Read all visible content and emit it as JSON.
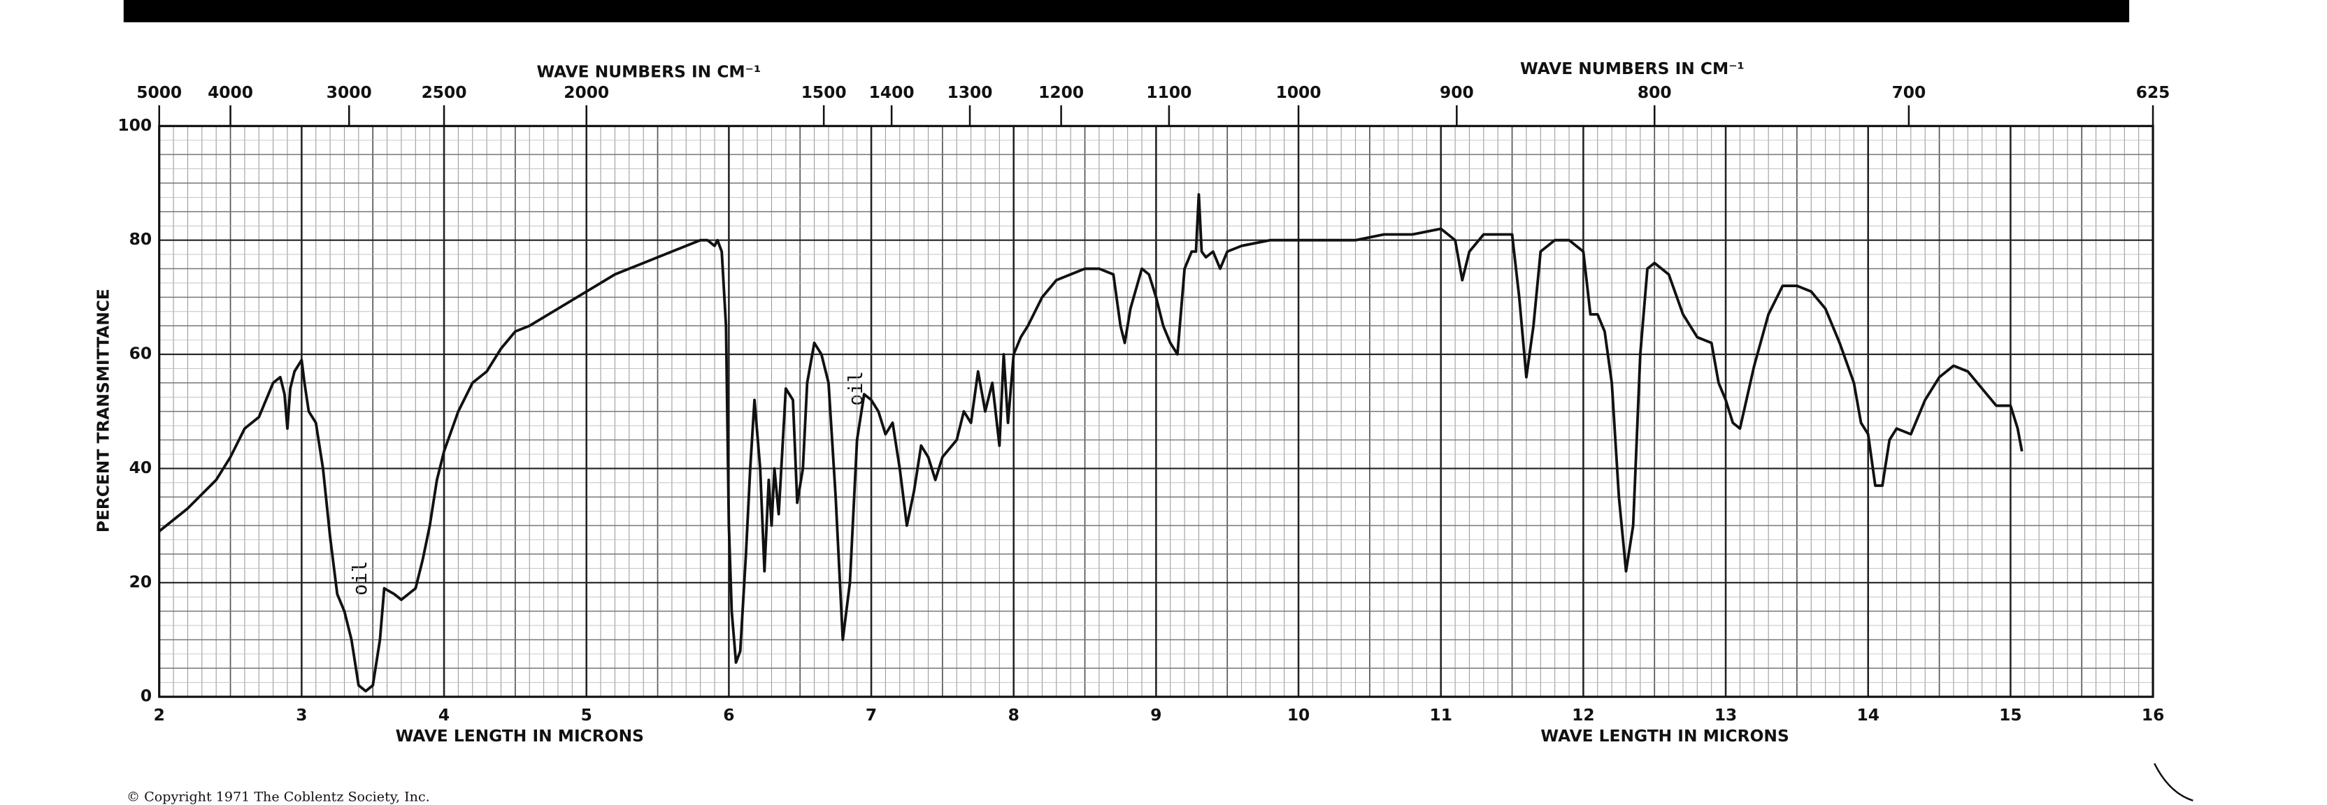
{
  "chart_data": {
    "type": "line",
    "top_title_left": "WAVE NUMBERS IN CM⁻¹",
    "top_title_right": "WAVE NUMBERS IN CM⁻¹",
    "xlabel_left": "WAVE LENGTH IN MICRONS",
    "xlabel_right": "WAVE LENGTH IN MICRONS",
    "ylabel": "PERCENT TRANSMITTANCE",
    "annotations": [
      "oil",
      "oil"
    ],
    "copyright": "© Copyright 1971  The Coblentz Society, Inc.",
    "color": "#111111",
    "grid": true,
    "x2_scale": "reciprocal",
    "xlim": [
      2,
      16
    ],
    "xticks": [
      2,
      3,
      4,
      5,
      6,
      7,
      8,
      9,
      10,
      11,
      12,
      13,
      14,
      15,
      16
    ],
    "x2ticks": [
      5000,
      4000,
      3000,
      2500,
      2000,
      1500,
      1400,
      1300,
      1200,
      1100,
      1000,
      900,
      800,
      700,
      625
    ],
    "ylim": [
      0,
      100
    ],
    "yticks": [
      0,
      20,
      40,
      60,
      80,
      100
    ],
    "x": [
      2.0,
      2.2,
      2.4,
      2.5,
      2.6,
      2.7,
      2.75,
      2.8,
      2.85,
      2.88,
      2.9,
      2.92,
      2.95,
      3.0,
      3.02,
      3.05,
      3.1,
      3.15,
      3.2,
      3.25,
      3.3,
      3.35,
      3.4,
      3.45,
      3.5,
      3.55,
      3.58,
      3.65,
      3.7,
      3.8,
      3.85,
      3.9,
      3.95,
      4.0,
      4.1,
      4.2,
      4.3,
      4.4,
      4.5,
      4.6,
      4.8,
      5.0,
      5.2,
      5.4,
      5.6,
      5.8,
      5.85,
      5.9,
      5.92,
      5.95,
      5.98,
      6.0,
      6.02,
      6.05,
      6.08,
      6.12,
      6.15,
      6.18,
      6.22,
      6.25,
      6.28,
      6.3,
      6.32,
      6.35,
      6.4,
      6.45,
      6.48,
      6.52,
      6.55,
      6.6,
      6.65,
      6.7,
      6.75,
      6.8,
      6.85,
      6.9,
      6.95,
      7.0,
      7.05,
      7.1,
      7.15,
      7.2,
      7.25,
      7.3,
      7.35,
      7.4,
      7.45,
      7.5,
      7.6,
      7.65,
      7.7,
      7.75,
      7.8,
      7.85,
      7.9,
      7.93,
      7.96,
      8.0,
      8.05,
      8.1,
      8.2,
      8.3,
      8.4,
      8.5,
      8.6,
      8.7,
      8.75,
      8.78,
      8.82,
      8.9,
      8.95,
      9.0,
      9.05,
      9.1,
      9.15,
      9.2,
      9.25,
      9.28,
      9.3,
      9.32,
      9.35,
      9.4,
      9.45,
      9.5,
      9.6,
      9.8,
      10.0,
      10.2,
      10.4,
      10.6,
      10.8,
      11.0,
      11.1,
      11.15,
      11.2,
      11.3,
      11.4,
      11.5,
      11.55,
      11.6,
      11.65,
      11.7,
      11.8,
      11.9,
      12.0,
      12.05,
      12.1,
      12.15,
      12.2,
      12.25,
      12.3,
      12.35,
      12.4,
      12.45,
      12.5,
      12.6,
      12.7,
      12.8,
      12.9,
      12.95,
      13.0,
      13.05,
      13.1,
      13.2,
      13.3,
      13.4,
      13.5,
      13.6,
      13.7,
      13.8,
      13.9,
      13.95,
      14.0,
      14.05,
      14.1,
      14.15,
      14.2,
      14.3,
      14.4,
      14.5,
      14.6,
      14.7,
      14.8,
      14.9,
      15.0,
      15.05,
      15.08
    ],
    "values": [
      29,
      33,
      38,
      42,
      47,
      49,
      52,
      55,
      56,
      53,
      47,
      54,
      57,
      59,
      55,
      50,
      48,
      40,
      28,
      18,
      15,
      10,
      2,
      1,
      2,
      10,
      19,
      18,
      17,
      19,
      24,
      30,
      38,
      43,
      50,
      55,
      57,
      61,
      64,
      65,
      68,
      71,
      74,
      76,
      78,
      80,
      80,
      79,
      80,
      78,
      65,
      30,
      15,
      6,
      8,
      25,
      40,
      52,
      40,
      22,
      38,
      30,
      40,
      32,
      54,
      52,
      34,
      40,
      55,
      62,
      60,
      55,
      35,
      10,
      20,
      45,
      53,
      52,
      50,
      46,
      48,
      40,
      30,
      36,
      44,
      42,
      38,
      42,
      45,
      50,
      48,
      57,
      50,
      55,
      44,
      60,
      48,
      60,
      63,
      65,
      70,
      73,
      74,
      75,
      75,
      74,
      65,
      62,
      68,
      75,
      74,
      70,
      65,
      62,
      60,
      75,
      78,
      78,
      88,
      78,
      77,
      78,
      75,
      78,
      79,
      80,
      80,
      80,
      80,
      81,
      81,
      82,
      80,
      73,
      78,
      81,
      81,
      81,
      70,
      56,
      65,
      78,
      80,
      80,
      78,
      67,
      67,
      64,
      55,
      35,
      22,
      30,
      60,
      75,
      76,
      74,
      67,
      63,
      62,
      55,
      52,
      48,
      47,
      58,
      67,
      72,
      72,
      71,
      68,
      62,
      55,
      48,
      46,
      37,
      37,
      45,
      47,
      46,
      52,
      56,
      58,
      57,
      54,
      51,
      51,
      47,
      43
    ]
  }
}
